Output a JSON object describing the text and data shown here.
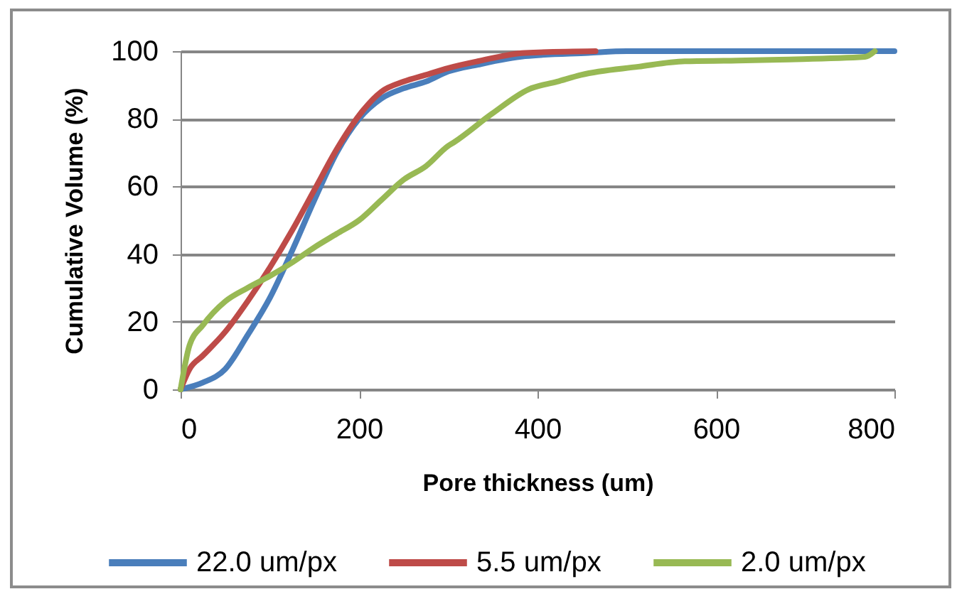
{
  "chart_data": {
    "type": "line",
    "xlabel": "Pore thickness (um)",
    "ylabel": "Cumulative Volume (%)",
    "xlim": [
      0,
      800
    ],
    "xticks": [
      0,
      200,
      400,
      600,
      800
    ],
    "ylim": [
      0,
      100
    ],
    "yticks": [
      0,
      20,
      40,
      60,
      80,
      100
    ],
    "grid": "y",
    "legend": "bottom",
    "marker": "none",
    "line_style": "solid",
    "series": [
      {
        "name": "22.0 um/px",
        "color": "#4a7ebb",
        "x": [
          0,
          25,
          50,
          75,
          100,
          125,
          150,
          175,
          200,
          225,
          250,
          275,
          300,
          333,
          386,
          457,
          500,
          600,
          700,
          800
        ],
        "values": [
          0,
          2,
          6,
          16,
          27,
          41,
          56,
          70,
          80,
          86,
          89,
          91,
          94,
          96,
          98.5,
          99.5,
          100,
          100,
          100,
          100
        ]
      },
      {
        "name": "5.5 um/px",
        "color": "#be4b48",
        "x": [
          0,
          10,
          25,
          50,
          75,
          100,
          125,
          150,
          175,
          200,
          225,
          250,
          275,
          300,
          333,
          386,
          465
        ],
        "values": [
          0,
          6,
          10,
          17,
          26,
          36,
          47,
          59,
          71,
          81,
          88,
          91,
          93,
          95,
          97,
          99.5,
          100
        ]
      },
      {
        "name": "2.0 um/px",
        "color": "#98b954",
        "x": [
          0,
          10,
          25,
          50,
          75,
          100,
          125,
          150,
          175,
          200,
          225,
          250,
          275,
          300,
          306,
          349,
          390,
          422,
          449,
          513,
          565,
          624,
          671,
          767,
          778
        ],
        "values": [
          0,
          13,
          19,
          26,
          30,
          33.5,
          37.5,
          42,
          46,
          50,
          56,
          62,
          66,
          72,
          73,
          81.5,
          88.7,
          91,
          93,
          95.4,
          97,
          97.2,
          97.5,
          98.3,
          100
        ]
      }
    ]
  }
}
